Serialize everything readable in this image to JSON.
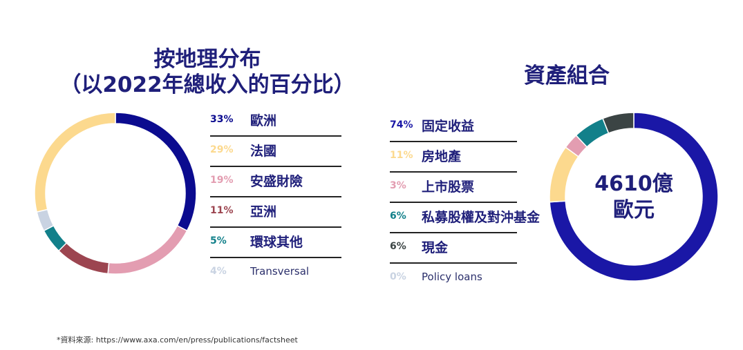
{
  "chart_data": [
    {
      "type": "pie",
      "title_line1": "按地理分布",
      "title_line2": "（以2022年總收入的百分比）",
      "slices": [
        {
          "label": "歐洲",
          "value": 33,
          "pct_label": "33%",
          "color": "#0b0b8f"
        },
        {
          "label": "法國",
          "value": 29,
          "pct_label": "29%",
          "color": "#fcd98e"
        },
        {
          "label": "安盛財險",
          "value": 19,
          "pct_label": "19%",
          "color": "#e39db1"
        },
        {
          "label": "亞洲",
          "value": 11,
          "pct_label": "11%",
          "color": "#9c4550"
        },
        {
          "label": "環球其他",
          "value": 5,
          "pct_label": "5%",
          "color": "#12808a"
        },
        {
          "label": "Transversal",
          "value": 4,
          "pct_label": "4%",
          "color": "#c9d3e2"
        }
      ],
      "ring_order": [
        "歐洲",
        "安盛財險",
        "亞洲",
        "環球其他",
        "Transversal",
        "法國"
      ]
    },
    {
      "type": "pie",
      "title": "資產組合",
      "center_line1": "4610億",
      "center_line2": "歐元",
      "slices": [
        {
          "label": "固定收益",
          "value": 74,
          "pct_label": "74%",
          "color": "#1a17a6"
        },
        {
          "label": "房地產",
          "value": 11,
          "pct_label": "11%",
          "color": "#fcd98e"
        },
        {
          "label": "上市股票",
          "value": 3,
          "pct_label": "3%",
          "color": "#e39db1"
        },
        {
          "label": "私募股權及對沖基金",
          "value": 6,
          "pct_label": "6%",
          "color": "#12808a"
        },
        {
          "label": "現金",
          "value": 6,
          "pct_label": "6%",
          "color": "#3b4444"
        },
        {
          "label": "Policy loans",
          "value": 0,
          "pct_label": "0%",
          "color": "#c9d3e2"
        }
      ]
    }
  ],
  "source_note": "*資料來源: https://www.axa.com/en/press/publications/factsheet"
}
